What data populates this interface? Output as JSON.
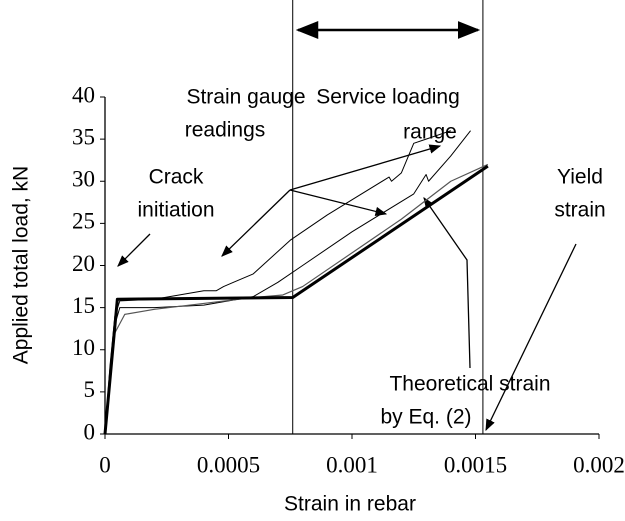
{
  "chart_data": {
    "type": "line",
    "xlabel": "Strain in rebar",
    "ylabel": "Applied total load, kN",
    "xlim": [
      0,
      0.002
    ],
    "ylim": [
      0,
      40
    ],
    "xticks": [
      0,
      0.0005,
      0.001,
      0.0015,
      0.002
    ],
    "yticks": [
      0,
      5,
      10,
      15,
      20,
      25,
      30,
      35,
      40
    ],
    "service_range": [
      0.00076,
      0.00153
    ],
    "yield_strain": 0.00153,
    "series": [
      {
        "color": "#000000",
        "width": 1,
        "x": [
          0,
          2e-05,
          4e-05,
          6e-05,
          0.0002,
          0.0004,
          0.00045,
          0.00048,
          0.00052,
          0.0006,
          0.00075,
          0.0009,
          0.00115,
          0.00116,
          0.0012,
          0.00125,
          0.0013,
          0.0014
        ],
        "values": [
          0,
          8,
          14,
          15.8,
          16,
          17,
          17,
          17.5,
          18,
          19,
          23,
          26,
          30.5,
          30,
          31,
          34.5,
          35,
          36
        ]
      },
      {
        "color": "#000000",
        "width": 1,
        "x": [
          0,
          2e-05,
          4e-05,
          6e-05,
          0.0002,
          0.0004,
          0.0005,
          0.0006,
          0.0007,
          0.0008,
          0.001,
          0.00125,
          0.0013,
          0.00131,
          0.0014,
          0.00148
        ],
        "values": [
          0,
          7,
          13,
          15,
          15,
          15.3,
          15.8,
          16.3,
          18,
          20,
          24,
          28.5,
          30.8,
          30,
          33,
          36
        ]
      },
      {
        "color": "#555555",
        "width": 1.2,
        "x": [
          0,
          2e-05,
          4e-05,
          8e-05,
          0.0002,
          0.0004,
          0.0006,
          0.00072,
          0.0008,
          0.001,
          0.0012,
          0.0014,
          0.00155
        ],
        "values": [
          0,
          6,
          12,
          14.2,
          14.8,
          15.5,
          16.2,
          16.5,
          17.5,
          21.5,
          25.5,
          30,
          32
        ]
      },
      {
        "color": "#000000",
        "width": 3,
        "x": [
          0,
          5e-05,
          0.00076,
          0.00155
        ],
        "values": [
          0,
          16,
          16.2,
          31.8
        ]
      }
    ],
    "annotations": {
      "service": [
        "Service loading",
        "range"
      ],
      "gauge": [
        "Strain gauge",
        "readings"
      ],
      "crack": [
        "Crack",
        "initiation"
      ],
      "theory": [
        "Theoretical strain",
        "by Eq. (2)"
      ],
      "yield": [
        "Yield",
        "strain"
      ]
    }
  }
}
